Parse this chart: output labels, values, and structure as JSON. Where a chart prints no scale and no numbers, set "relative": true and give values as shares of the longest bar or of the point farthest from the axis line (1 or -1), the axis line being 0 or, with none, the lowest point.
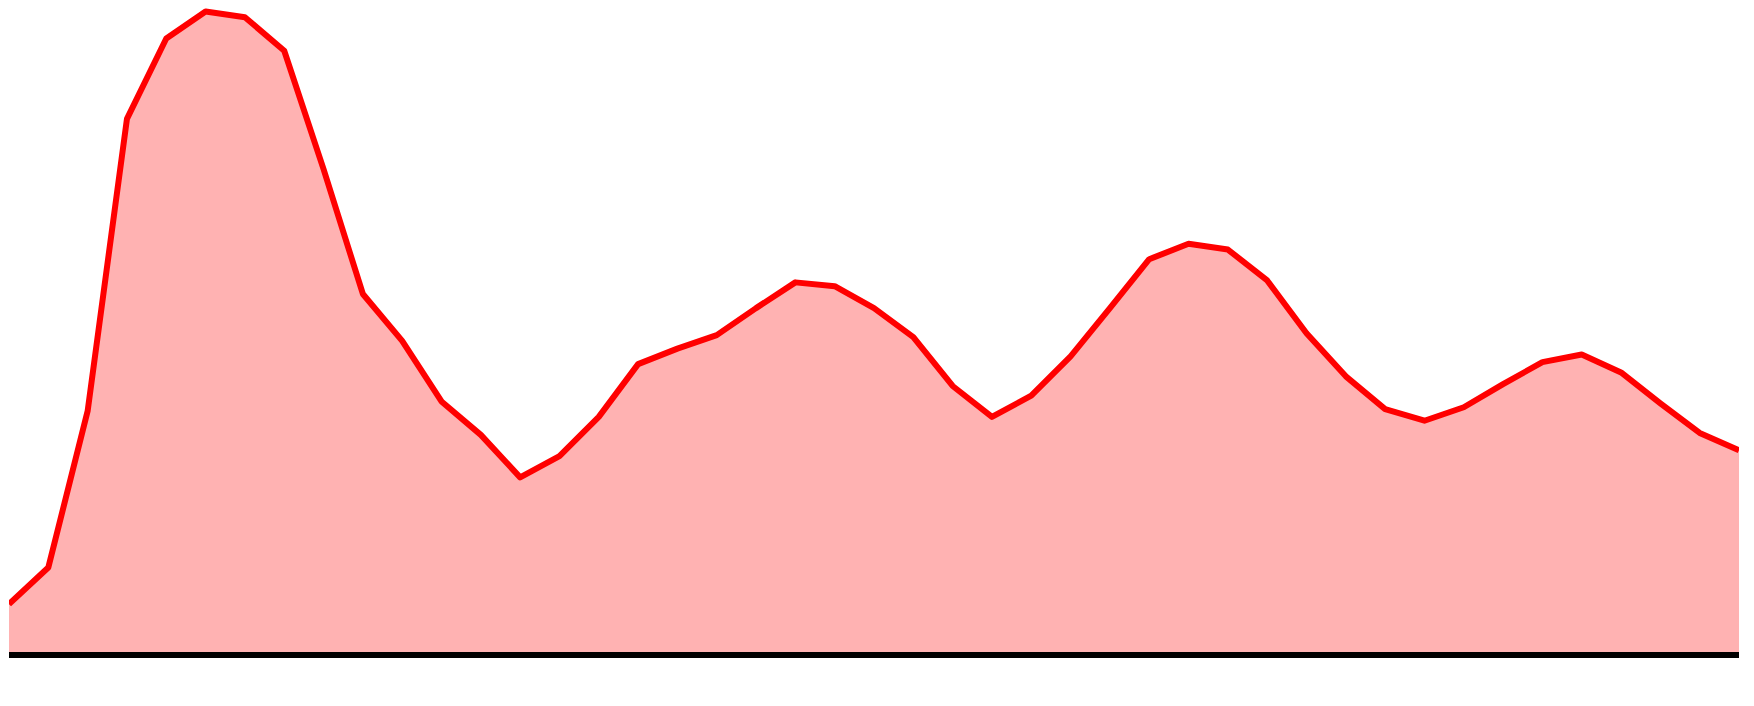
{
  "chart_data": {
    "type": "area",
    "relative": true,
    "categories": [
      null,
      null,
      null,
      null,
      null,
      null,
      null,
      null,
      null,
      null,
      null,
      null,
      null,
      null,
      null,
      null,
      null,
      null,
      null,
      null,
      null,
      null,
      null,
      null,
      null,
      null,
      null,
      null,
      null,
      null,
      null,
      null,
      null,
      null,
      null,
      null,
      null,
      null,
      null,
      null,
      null,
      null,
      null,
      null,
      null
    ],
    "series": [
      {
        "color": "#ff0000",
        "values": [
          0.079,
          0.136,
          0.379,
          0.833,
          0.958,
          1,
          0.991,
          0.939,
          0.755,
          0.561,
          0.488,
          0.394,
          0.342,
          0.276,
          0.309,
          0.37,
          0.452,
          0.476,
          0.497,
          0.539,
          0.579,
          0.573,
          0.539,
          0.494,
          0.418,
          0.37,
          0.403,
          0.464,
          0.539,
          0.615,
          0.639,
          0.63,
          0.582,
          0.5,
          0.433,
          0.382,
          0.364,
          0.385,
          0.421,
          0.455,
          0.467,
          0.439,
          0.391,
          0.345,
          0.318
        ]
      }
    ]
  }
}
